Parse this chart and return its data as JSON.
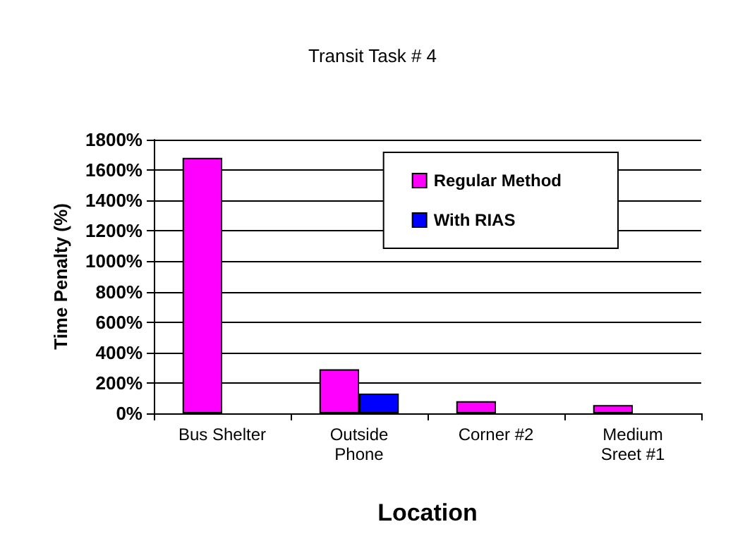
{
  "chart_data": {
    "type": "bar",
    "title": "Transit Task # 4",
    "xlabel": "Location",
    "ylabel": "Time Penalty (%)",
    "categories": [
      "Bus Shelter",
      "Outside\nPhone",
      "Corner #2",
      "Medium\nSreet #1"
    ],
    "series": [
      {
        "name": "Regular Method",
        "color": "#ff00ff",
        "values": [
          1680,
          290,
          80,
          55
        ]
      },
      {
        "name": "With RIAS",
        "color": "#0000ff",
        "values": [
          null,
          130,
          null,
          null
        ]
      }
    ],
    "ylim": [
      0,
      1800
    ],
    "yticks": [
      {
        "value": 0,
        "label": "0%"
      },
      {
        "value": 200,
        "label": "200%"
      },
      {
        "value": 400,
        "label": "400%"
      },
      {
        "value": 600,
        "label": "600%"
      },
      {
        "value": 800,
        "label": "800%"
      },
      {
        "value": 1000,
        "label": "1000%"
      },
      {
        "value": 1200,
        "label": "1200%"
      },
      {
        "value": 1400,
        "label": "1400%"
      },
      {
        "value": 1600,
        "label": "1600%"
      },
      {
        "value": 1800,
        "label": "1800%"
      }
    ],
    "grid": "y",
    "legend": "top right"
  }
}
